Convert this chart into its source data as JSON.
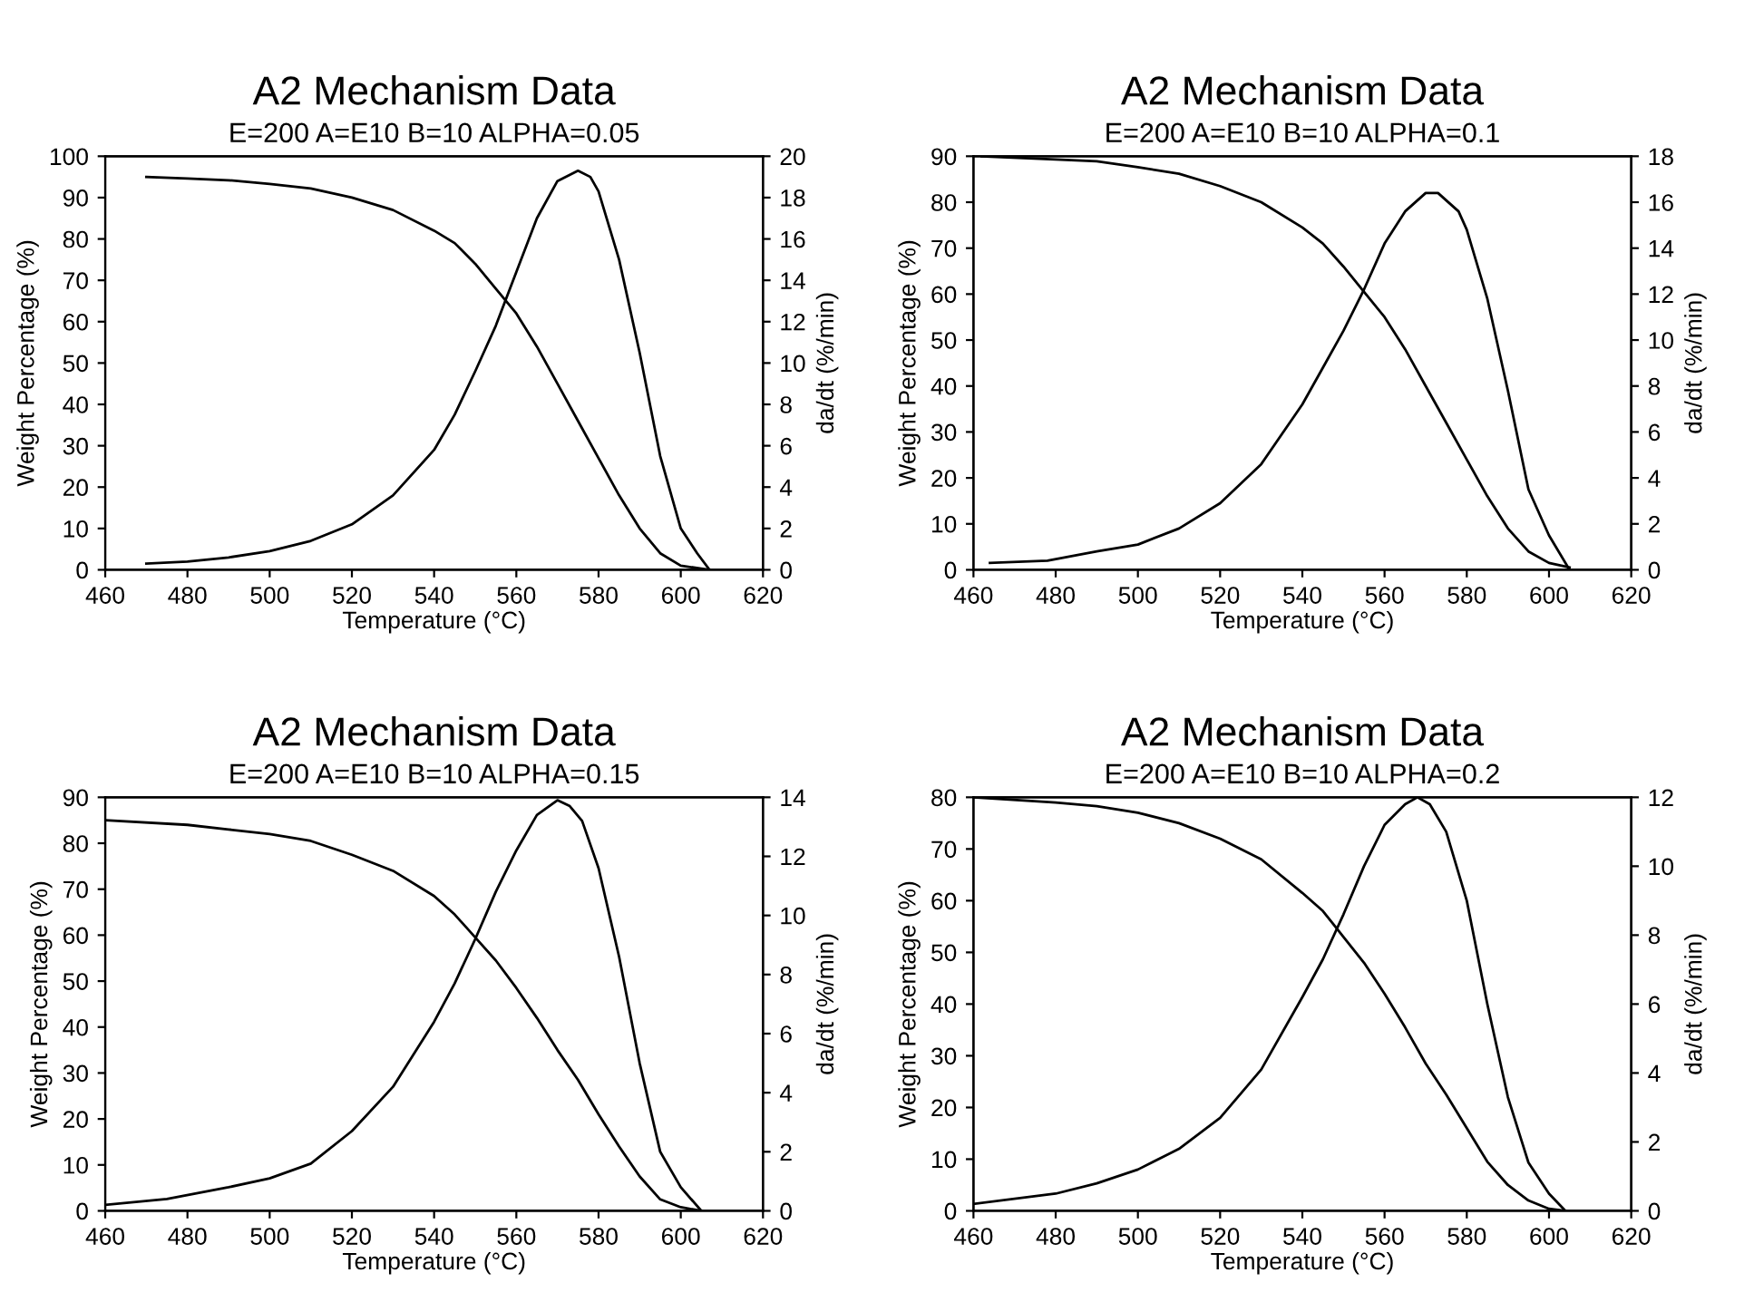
{
  "chart_data": [
    {
      "type": "line",
      "title": "A2 Mechanism Data",
      "subtitle": "E=200 A=E10 B=10 ALPHA=0.05",
      "xlabel": "Temperature (°C)",
      "ylabel": "Weight Percentage (%)",
      "y2label": "da/dt (%/min)",
      "xlim": [
        460,
        620
      ],
      "xticks": [
        460,
        480,
        500,
        520,
        540,
        560,
        580,
        600,
        620
      ],
      "ylim": [
        0,
        100
      ],
      "yticks": [
        0,
        10,
        20,
        30,
        40,
        50,
        60,
        70,
        80,
        90,
        100
      ],
      "y2lim": [
        0,
        20
      ],
      "y2ticks": [
        0,
        2,
        4,
        6,
        8,
        10,
        12,
        14,
        16,
        18,
        20
      ],
      "grid": false,
      "marker": "none",
      "line_style": "solid",
      "series": [
        {
          "color": "#000000",
          "x": [
            470,
            480,
            490,
            500,
            510,
            520,
            530,
            540,
            545,
            550,
            555,
            560,
            565,
            570,
            575,
            580,
            585,
            590,
            595,
            600,
            605,
            607
          ],
          "values": [
            95,
            94.6,
            94.2,
            93.3,
            92.2,
            90,
            87,
            82,
            79,
            74,
            68,
            62,
            54,
            45,
            36,
            27,
            18,
            10,
            4,
            1,
            0.3,
            0
          ]
        },
        {
          "color": "#000000",
          "axis": "y2",
          "x": [
            470,
            480,
            490,
            500,
            510,
            520,
            530,
            540,
            545,
            550,
            555,
            560,
            565,
            570,
            575,
            578,
            580,
            585,
            590,
            595,
            600,
            604,
            607
          ],
          "values": [
            0.3,
            0.4,
            0.6,
            0.9,
            1.4,
            2.2,
            3.6,
            5.8,
            7.5,
            9.6,
            11.8,
            14.4,
            17.0,
            18.8,
            19.3,
            19.0,
            18.3,
            15.0,
            10.5,
            5.5,
            2.0,
            0.8,
            0
          ]
        }
      ]
    },
    {
      "type": "line",
      "title": "A2 Mechanism Data",
      "subtitle": "E=200 A=E10 B=10 ALPHA=0.1",
      "xlabel": "Temperature (°C)",
      "ylabel": "Weight Percentage (%)",
      "y2label": "da/dt (%/min)",
      "xlim": [
        460,
        620
      ],
      "xticks": [
        460,
        480,
        500,
        520,
        540,
        560,
        580,
        600,
        620
      ],
      "ylim": [
        0,
        90
      ],
      "yticks": [
        0,
        10,
        20,
        30,
        40,
        50,
        60,
        70,
        80,
        90
      ],
      "y2lim": [
        0,
        18
      ],
      "y2ticks": [
        0,
        2,
        4,
        6,
        8,
        10,
        12,
        14,
        16,
        18
      ],
      "grid": false,
      "marker": "none",
      "line_style": "solid",
      "series": [
        {
          "color": "#000000",
          "x": [
            462,
            480,
            490,
            500,
            510,
            520,
            530,
            540,
            545,
            550,
            555,
            560,
            565,
            570,
            575,
            580,
            585,
            590,
            595,
            600,
            605
          ],
          "values": [
            90,
            89.3,
            88.9,
            87.6,
            86.2,
            83.5,
            80,
            74.5,
            71,
            66,
            60.5,
            55,
            48,
            40,
            32,
            24,
            16,
            9,
            4,
            1.5,
            0.5
          ]
        },
        {
          "color": "#000000",
          "axis": "y2",
          "x": [
            464,
            478,
            490,
            500,
            510,
            520,
            530,
            540,
            545,
            550,
            555,
            560,
            565,
            570,
            573,
            578,
            580,
            585,
            590,
            595,
            600,
            605
          ],
          "values": [
            0.3,
            0.4,
            0.8,
            1.1,
            1.8,
            2.9,
            4.6,
            7.2,
            8.8,
            10.4,
            12.2,
            14.2,
            15.6,
            16.4,
            16.4,
            15.6,
            14.8,
            11.8,
            7.8,
            3.5,
            1.5,
            0
          ]
        }
      ]
    },
    {
      "type": "line",
      "title": "A2 Mechanism Data",
      "subtitle": "E=200 A=E10 B=10 ALPHA=0.15",
      "xlabel": "Temperature (°C)",
      "ylabel": "Weight Percentage (%)",
      "y2label": "da/dt (%/min)",
      "xlim": [
        460,
        620
      ],
      "xticks": [
        460,
        480,
        500,
        520,
        540,
        560,
        580,
        600,
        620
      ],
      "ylim": [
        0,
        90
      ],
      "yticks": [
        0,
        10,
        20,
        30,
        40,
        50,
        60,
        70,
        80,
        90
      ],
      "y2lim": [
        0,
        14
      ],
      "y2ticks": [
        0,
        2,
        4,
        6,
        8,
        10,
        12,
        14
      ],
      "grid": false,
      "marker": "none",
      "line_style": "solid",
      "series": [
        {
          "color": "#000000",
          "x": [
            460,
            480,
            490,
            500,
            510,
            520,
            530,
            540,
            545,
            550,
            555,
            560,
            565,
            570,
            575,
            580,
            585,
            590,
            595,
            600,
            605
          ],
          "values": [
            85,
            84,
            83,
            82,
            80.5,
            77.5,
            74,
            68.5,
            64.5,
            59.5,
            54.5,
            48.5,
            42,
            35,
            28.5,
            21,
            14,
            7.5,
            2.5,
            0.8,
            0
          ]
        },
        {
          "color": "#000000",
          "axis": "y2",
          "x": [
            460,
            475,
            490,
            500,
            510,
            520,
            530,
            540,
            545,
            550,
            555,
            560,
            565,
            570,
            573,
            576,
            580,
            585,
            590,
            595,
            600,
            605
          ],
          "values": [
            0.2,
            0.4,
            0.8,
            1.1,
            1.6,
            2.7,
            4.2,
            6.4,
            7.7,
            9.2,
            10.8,
            12.2,
            13.4,
            13.9,
            13.7,
            13.2,
            11.6,
            8.6,
            5.0,
            2.0,
            0.8,
            0
          ]
        }
      ]
    },
    {
      "type": "line",
      "title": "A2 Mechanism Data",
      "subtitle": "E=200 A=E10 B=10 ALPHA=0.2",
      "xlabel": "Temperature (°C)",
      "ylabel": "Weight Percentage (%)",
      "y2label": "da/dt (%/min)",
      "xlim": [
        460,
        620
      ],
      "xticks": [
        460,
        480,
        500,
        520,
        540,
        560,
        580,
        600,
        620
      ],
      "ylim": [
        0,
        80
      ],
      "yticks": [
        0,
        10,
        20,
        30,
        40,
        50,
        60,
        70,
        80
      ],
      "y2lim": [
        0,
        12
      ],
      "y2ticks": [
        0,
        2,
        4,
        6,
        8,
        10,
        12
      ],
      "grid": false,
      "marker": "none",
      "line_style": "solid",
      "series": [
        {
          "color": "#000000",
          "x": [
            460,
            480,
            490,
            500,
            510,
            520,
            530,
            540,
            545,
            550,
            555,
            560,
            565,
            570,
            575,
            580,
            585,
            590,
            595,
            600,
            604
          ],
          "values": [
            80,
            79,
            78.3,
            77,
            75,
            72,
            68,
            61.5,
            58,
            53,
            48,
            42,
            35.5,
            28.5,
            22.5,
            16,
            9.5,
            5,
            2,
            0.4,
            0
          ]
        },
        {
          "color": "#000000",
          "axis": "y2",
          "x": [
            460,
            480,
            490,
            500,
            510,
            520,
            530,
            540,
            545,
            550,
            555,
            560,
            565,
            568,
            571,
            575,
            580,
            585,
            590,
            595,
            600,
            604
          ],
          "values": [
            0.2,
            0.5,
            0.8,
            1.2,
            1.8,
            2.7,
            4.1,
            6.2,
            7.3,
            8.6,
            10.0,
            11.2,
            11.8,
            12.0,
            11.8,
            11.0,
            9.0,
            6.0,
            3.3,
            1.4,
            0.5,
            0
          ]
        }
      ]
    }
  ]
}
